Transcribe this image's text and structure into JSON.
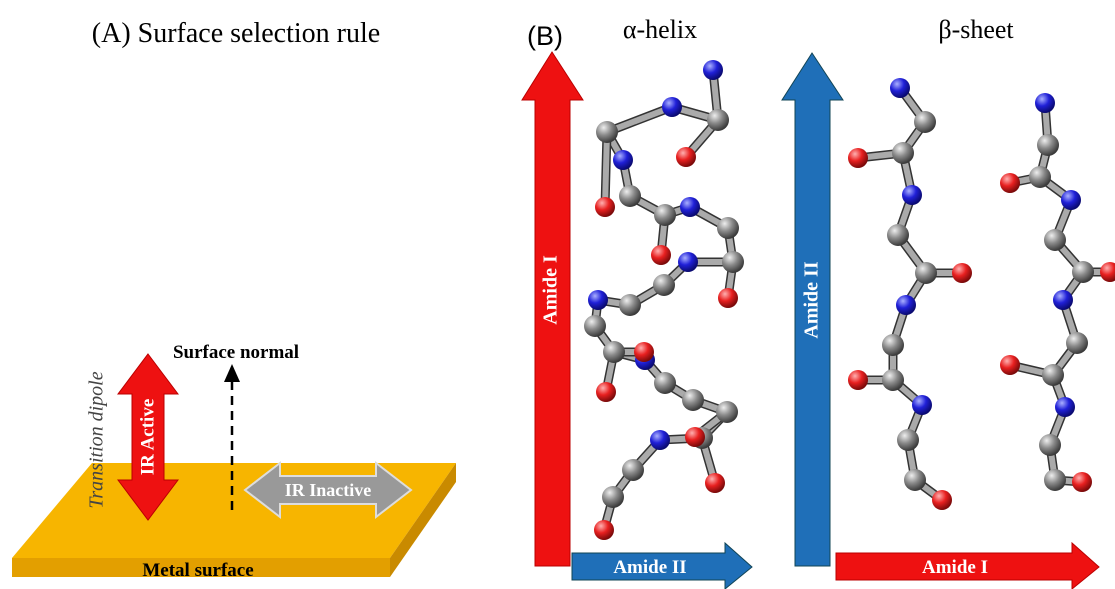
{
  "panel_a": {
    "title": "(A) Surface selection rule",
    "transition_dipole": "Transition dipole",
    "surface_normal": "Surface normal",
    "ir_active": "IR Active",
    "ir_inactive": "IR Inactive",
    "metal_surface": "Metal surface"
  },
  "panel_b": {
    "label": "(B)",
    "helix": {
      "title": "α-helix",
      "vertical_arrow": "Amide I",
      "horizontal_arrow": "Amide II"
    },
    "sheet": {
      "title": "β-sheet",
      "vertical_arrow": "Amide II",
      "horizontal_arrow": "Amide I"
    }
  }
}
